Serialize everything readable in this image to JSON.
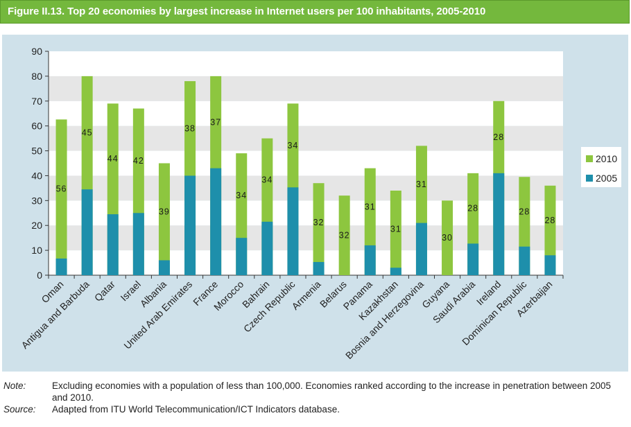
{
  "figure_title": "Figure II.13.  Top 20 economies by largest increase in Internet users per 100 inhabitants, 2005-2010",
  "colors": {
    "series_2010": "#8dc63f",
    "series_2005": "#1e8fab",
    "title_bg": "#74b83d",
    "panel_bg": "#cfe1ea"
  },
  "notes": {
    "note_label": "Note:",
    "note_text": "Excluding economies with a population of less than 100,000. Economies ranked according to the increase in penetration between 2005 and 2010.",
    "source_label": "Source:",
    "source_text": "Adapted from ITU World Telecommunication/ICT Indicators database."
  },
  "chart_data": {
    "type": "bar",
    "stacked": "overlay",
    "title": "Top 20 economies by largest increase in Internet users per 100 inhabitants, 2005-2010",
    "xlabel": "",
    "ylabel": "",
    "ylim": [
      0,
      90
    ],
    "yticks": [
      0,
      10,
      20,
      30,
      40,
      50,
      60,
      70,
      80,
      90
    ],
    "categories": [
      "Oman",
      "Antigua and Barbuda",
      "Qatar",
      "Israel",
      "Albania",
      "United Arab Emirates",
      "France",
      "Morocco",
      "Bahrain",
      "Czech Republic",
      "Armenia",
      "Belarus",
      "Panama",
      "Kazakhstan",
      "Bosnia and Herzegovina",
      "Guyana",
      "Saudi Arabia",
      "Ireland",
      "Dominican Republic",
      "Azerbaijan"
    ],
    "series": [
      {
        "name": "2005",
        "values": [
          6.7,
          34.5,
          24.5,
          25,
          6,
          40,
          43,
          15,
          21.5,
          35.3,
          5.3,
          0,
          12,
          3,
          21,
          0,
          12.7,
          41,
          11.5,
          8
        ]
      },
      {
        "name": "2010",
        "values": [
          62.6,
          80,
          69,
          67,
          45,
          78,
          80,
          49,
          55,
          69,
          37,
          32,
          43,
          34,
          52,
          30,
          41,
          70,
          39.5,
          36
        ]
      }
    ],
    "increase_labels": [
      "56",
      "45",
      "44",
      "42",
      "39",
      "38",
      "37",
      "34",
      "34",
      "34",
      "32",
      "32",
      "31",
      "31",
      "31",
      "30",
      "28",
      "28",
      "28",
      "28"
    ],
    "legend": [
      {
        "name": "2010",
        "series": "2010"
      },
      {
        "name": "2005",
        "series": "2005"
      }
    ],
    "legend_position": "right",
    "grid": "alternating horizontal bands"
  }
}
